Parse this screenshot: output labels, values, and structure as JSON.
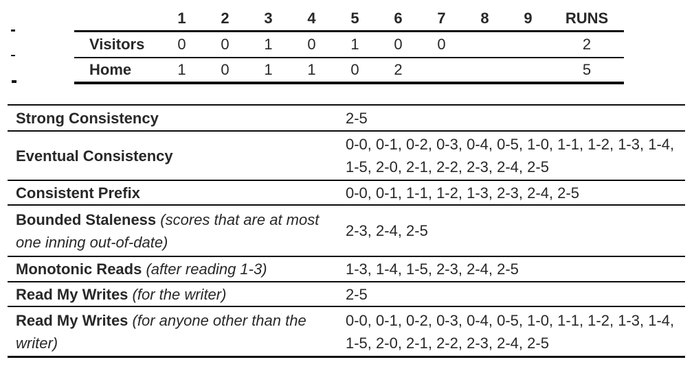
{
  "scoreboard": {
    "columns": [
      "1",
      "2",
      "3",
      "4",
      "5",
      "6",
      "7",
      "8",
      "9"
    ],
    "runs_label": "RUNS",
    "rows": [
      {
        "label": "Visitors",
        "innings": [
          "0",
          "0",
          "1",
          "0",
          "1",
          "0",
          "0",
          "",
          ""
        ],
        "runs": "2"
      },
      {
        "label": "Home",
        "innings": [
          "1",
          "0",
          "1",
          "1",
          "0",
          "2",
          "",
          "",
          ""
        ],
        "runs": "5"
      }
    ]
  },
  "consistency": {
    "rows": [
      {
        "label_bold": "Strong Consistency",
        "label_italic": "",
        "values": "2-5"
      },
      {
        "label_bold": "Eventual Consistency",
        "label_italic": "",
        "values": "0-0, 0-1, 0-2, 0-3, 0-4, 0-5, 1-0, 1-1, 1-2, 1-3, 1-4, 1-5, 2-0, 2-1, 2-2, 2-3, 2-4, 2-5"
      },
      {
        "label_bold": "Consistent Prefix",
        "label_italic": "",
        "values": "0-0, 0-1, 1-1, 1-2, 1-3, 2-3, 2-4, 2-5"
      },
      {
        "label_bold": "Bounded Staleness",
        "label_italic": " (scores that are at most one inning out-of-date)",
        "values": "2-3, 2-4, 2-5"
      },
      {
        "label_bold": "Monotonic Reads",
        "label_italic": " (after reading 1-3)",
        "values": "1-3, 1-4, 1-5, 2-3, 2-4, 2-5"
      },
      {
        "label_bold": "Read My Writes",
        "label_italic": " (for the writer)",
        "values": "2-5"
      },
      {
        "label_bold": "Read My Writes",
        "label_italic": " (for anyone other than the writer)",
        "values": "0-0, 0-1, 0-2, 0-3, 0-4, 0-5, 1-0, 1-1, 1-2, 1-3, 1-4, 1-5, 2-0, 2-1, 2-2, 2-3, 2-4, 2-5"
      }
    ]
  },
  "colors": {
    "text": "#282828",
    "rule": "#0a0a0a",
    "background": "#ffffff"
  }
}
